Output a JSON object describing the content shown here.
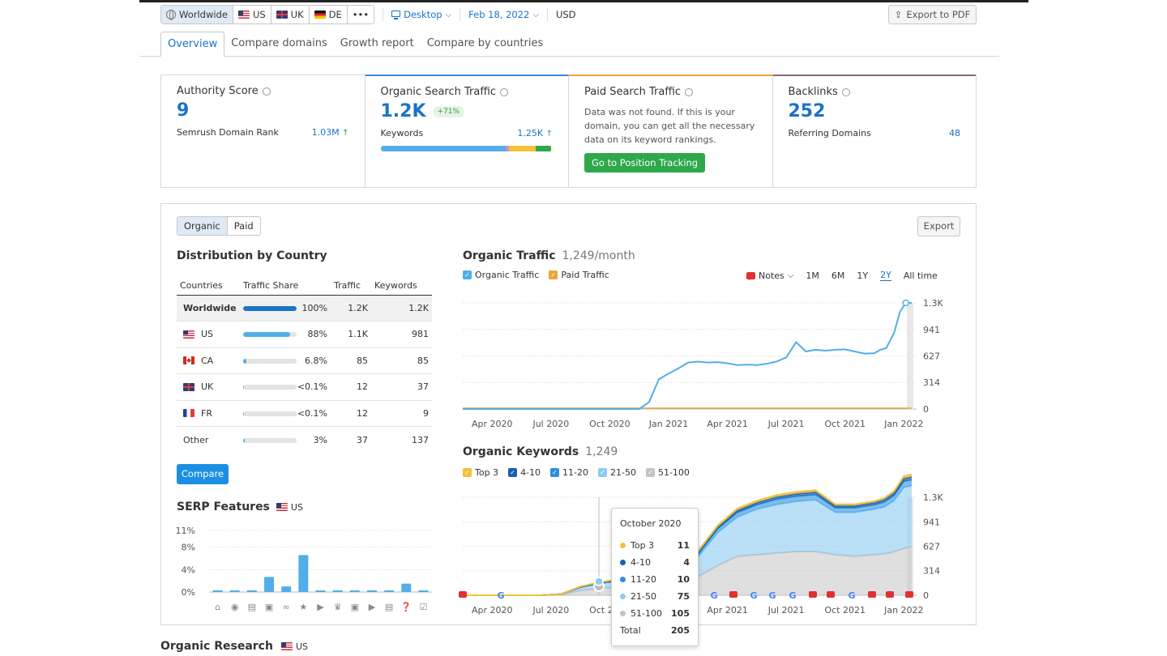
{
  "toolbar": {
    "db": [
      {
        "label": "Worldwide",
        "flag": "globe"
      },
      {
        "label": "US",
        "flag": "us"
      },
      {
        "label": "UK",
        "flag": "uk"
      },
      {
        "label": "DE",
        "flag": "de"
      },
      {
        "label": "•••",
        "flag": ""
      }
    ],
    "device": "Desktop",
    "date": "Feb 18, 2022",
    "currency": "USD",
    "export_pdf": "Export to PDF"
  },
  "tabs": [
    "Overview",
    "Compare domains",
    "Growth report",
    "Compare by countries"
  ],
  "cards": {
    "authority": {
      "title": "Authority Score",
      "value": "9",
      "row_label": "Semrush Domain Rank",
      "row_value": "1.03M"
    },
    "organic": {
      "title": "Organic Search Traffic",
      "value": "1.2K",
      "badge": "+71%",
      "row_label": "Keywords",
      "row_value": "1.25K",
      "bar": [
        {
          "share": 0.73,
          "color": "#52aee8"
        },
        {
          "share": 0.02,
          "color": "#c98fd8"
        },
        {
          "share": 0.16,
          "color": "#f3c23c"
        },
        {
          "share": 0.09,
          "color": "#2ea84a"
        }
      ]
    },
    "paid": {
      "title": "Paid Search Traffic",
      "text": "Data was not found. If this is your domain, you can get all the necessary data on its keyword rankings.",
      "button": "Go to Position Tracking"
    },
    "backlinks": {
      "title": "Backlinks",
      "value": "252",
      "row_label": "Referring Domains",
      "row_value": "48"
    }
  },
  "panel": {
    "toggle": [
      "Organic",
      "Paid"
    ],
    "export": "Export",
    "distribution": {
      "title": "Distribution by Country",
      "headers": [
        "Countries",
        "Traffic Share",
        "Traffic",
        "Keywords"
      ],
      "rows": [
        {
          "country": "Worldwide",
          "flag": "",
          "share_pct": 100,
          "share": "100%",
          "traffic": "1.2K",
          "keywords": "1.2K"
        },
        {
          "country": "US",
          "flag": "us",
          "share_pct": 88,
          "share": "88%",
          "traffic": "1.1K",
          "keywords": "981"
        },
        {
          "country": "CA",
          "flag": "ca",
          "share_pct": 6.8,
          "share": "6.8%",
          "traffic": "85",
          "keywords": "85"
        },
        {
          "country": "UK",
          "flag": "uk",
          "share_pct": 0.1,
          "share": "<0.1%",
          "traffic": "12",
          "keywords": "37"
        },
        {
          "country": "FR",
          "flag": "fr",
          "share_pct": 0.1,
          "share": "<0.1%",
          "traffic": "12",
          "keywords": "9"
        },
        {
          "country": "Other",
          "flag": "",
          "share_pct": 3,
          "share": "3%",
          "traffic": "37",
          "keywords": "137"
        }
      ],
      "compare_button": "Compare"
    },
    "serp": {
      "title": "SERP Features",
      "db": "US"
    },
    "organic_traffic": {
      "title": "Organic Traffic",
      "subtitle": "1,249/month",
      "legend": [
        "Organic Traffic",
        "Paid Traffic"
      ],
      "notes": "Notes",
      "ranges": [
        "1M",
        "6M",
        "1Y",
        "2Y",
        "All time"
      ],
      "selected_range": "2Y"
    },
    "organic_keywords": {
      "title": "Organic Keywords",
      "subtitle": "1,249",
      "legend": [
        "Top 3",
        "4-10",
        "11-20",
        "21-50",
        "51-100"
      ]
    },
    "tooltip": {
      "title": "October 2020",
      "rows": [
        {
          "label": "Top 3",
          "value": "11",
          "color": "#f3c23c"
        },
        {
          "label": "4-10",
          "value": "4",
          "color": "#1a5fae"
        },
        {
          "label": "11-20",
          "value": "10",
          "color": "#2a8fe0"
        },
        {
          "label": "21-50",
          "value": "75",
          "color": "#8ccbf2"
        },
        {
          "label": "51-100",
          "value": "105",
          "color": "#c4c4c4"
        }
      ],
      "total_label": "Total",
      "total_value": "205"
    }
  },
  "organic_research": {
    "title": "Organic Research",
    "db": "US"
  },
  "chart_data": [
    {
      "type": "line",
      "title": "Organic Traffic",
      "x_ticks": [
        "Apr 2020",
        "Jul 2020",
        "Oct 2020",
        "Jan 2021",
        "Apr 2021",
        "Jul 2021",
        "Oct 2021",
        "Jan 2022"
      ],
      "y_ticks": [
        "1.3K",
        "941",
        "627",
        "314",
        "0"
      ],
      "ylim": [
        0,
        1255
      ],
      "series": [
        {
          "name": "Organic Traffic",
          "color": "#52aee8",
          "x": [
            0,
            0.5,
            1,
            1.5,
            2,
            2.3,
            2.6,
            3,
            3.3,
            3.6,
            4,
            4.5,
            5,
            5.5,
            6,
            6.5,
            7,
            7.5,
            7.8,
            8.1,
            8.3,
            8.5,
            8.7,
            9,
            9.5,
            10,
            10.5,
            11,
            11.5,
            12,
            12.5,
            13,
            13.5,
            14,
            14.5,
            15,
            15.5,
            16,
            16.5,
            17,
            17.5,
            18,
            18.5,
            19,
            19.5,
            20,
            20.5,
            21,
            21.3,
            21.6,
            22,
            22.3,
            22.6,
            22.9
          ],
          "y": [
            0,
            0,
            0,
            0,
            0,
            0,
            0,
            0,
            0,
            0,
            0,
            0,
            0,
            0,
            0,
            0,
            0,
            0,
            0,
            0,
            0,
            0,
            0,
            0,
            80,
            350,
            420,
            480,
            550,
            560,
            550,
            555,
            540,
            520,
            525,
            520,
            535,
            560,
            610,
            790,
            680,
            700,
            690,
            700,
            705,
            680,
            655,
            660,
            700,
            720,
            900,
            1150,
            1255,
            1255
          ]
        },
        {
          "name": "Paid Traffic",
          "color": "#f0a23a",
          "x": [
            0,
            22.9
          ],
          "y": [
            0,
            0
          ]
        }
      ]
    },
    {
      "type": "area",
      "title": "Organic Keywords",
      "x_ticks": [
        "Apr 2020",
        "Jul 2020",
        "Oct 2020",
        "Jan 2021",
        "Apr 2021",
        "Jul 2021",
        "Oct 2021",
        "Jan 2022"
      ],
      "y_ticks": [
        "1.3K",
        "941",
        "627",
        "314",
        "0"
      ],
      "ylim": [
        0,
        1255
      ],
      "x": [
        0,
        1,
        2,
        3,
        4,
        5,
        6,
        7,
        8,
        9,
        10,
        11,
        12,
        13,
        14,
        15,
        16,
        17,
        18,
        19,
        20,
        21,
        21.5,
        22,
        22.5,
        22.9
      ],
      "series": [
        {
          "name": "51-100",
          "color": "#c4c4c4",
          "values": [
            0,
            0,
            0,
            0,
            0,
            10,
            60,
            90,
            105,
            110,
            120,
            160,
            240,
            380,
            500,
            520,
            540,
            560,
            560,
            520,
            500,
            520,
            530,
            560,
            600,
            620
          ]
        },
        {
          "name": "21-50",
          "color": "#8ccbf2",
          "values": [
            0,
            0,
            0,
            0,
            0,
            5,
            40,
            60,
            75,
            80,
            90,
            130,
            250,
            420,
            500,
            580,
            620,
            640,
            660,
            540,
            560,
            580,
            600,
            650,
            780,
            780
          ]
        },
        {
          "name": "11-20",
          "color": "#2a8fe0",
          "values": [
            0,
            0,
            0,
            0,
            0,
            0,
            5,
            8,
            10,
            10,
            10,
            20,
            40,
            50,
            60,
            60,
            70,
            70,
            70,
            60,
            60,
            60,
            65,
            70,
            80,
            80
          ]
        },
        {
          "name": "4-10",
          "color": "#1a5fae",
          "values": [
            0,
            0,
            0,
            0,
            0,
            0,
            2,
            3,
            4,
            4,
            4,
            8,
            15,
            20,
            25,
            25,
            28,
            28,
            30,
            25,
            25,
            25,
            28,
            30,
            35,
            35
          ]
        },
        {
          "name": "Top 3",
          "color": "#f3c23c",
          "values": [
            0,
            0,
            0,
            0,
            0,
            0,
            5,
            8,
            11,
            11,
            11,
            15,
            20,
            22,
            25,
            25,
            25,
            25,
            25,
            20,
            20,
            20,
            22,
            25,
            30,
            30
          ]
        }
      ]
    },
    {
      "type": "bar",
      "title": "SERP Features",
      "y_ticks": [
        "11%",
        "8%",
        "4%",
        "0%"
      ],
      "ylim": [
        0,
        11
      ],
      "values": [
        0.3,
        0.3,
        0.3,
        2.7,
        1.0,
        6.6,
        0.3,
        0.3,
        0.3,
        0.3,
        0.3,
        1.5,
        0.3
      ],
      "icons": [
        "graduation-cap-icon",
        "location-pin-icon",
        "document-icon",
        "image-icon",
        "link-icon",
        "star-icon",
        "video-icon",
        "crown-icon",
        "image-icon",
        "video-icon",
        "news-icon",
        "question-icon",
        "faq-icon"
      ]
    }
  ]
}
